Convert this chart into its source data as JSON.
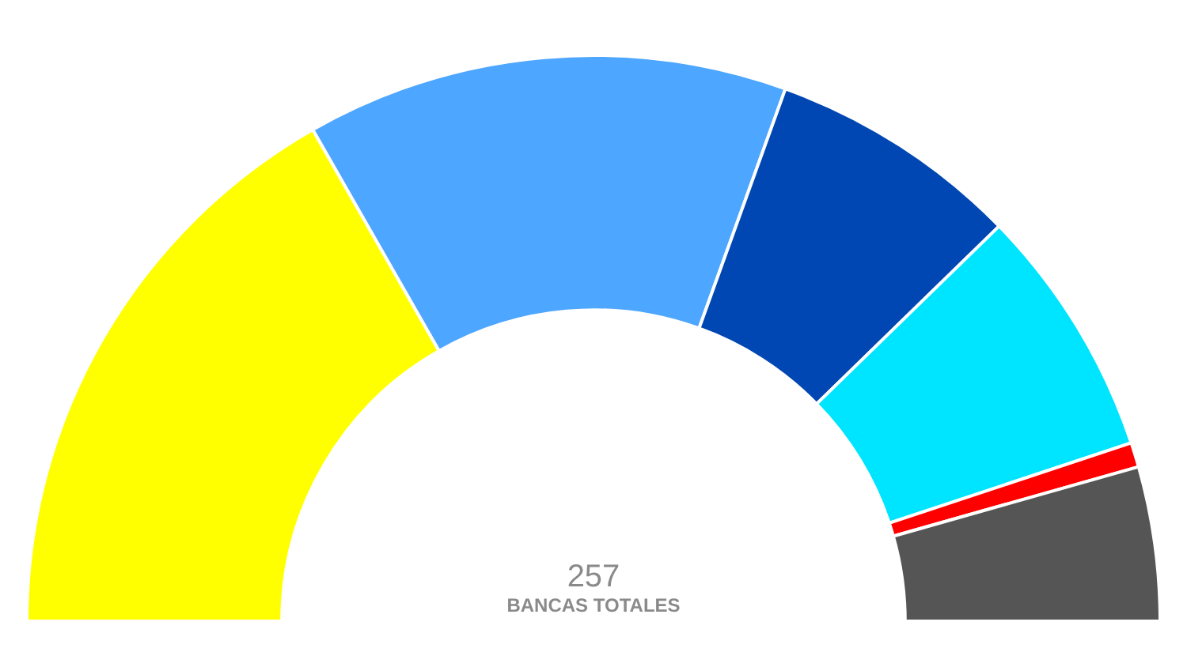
{
  "chart_data": {
    "type": "donut",
    "categories": [
      null,
      null,
      null,
      null,
      null,
      null
    ],
    "values": [
      33.5,
      27.5,
      14.4,
      14.4,
      1.4,
      8.8
    ],
    "colors": [
      "#ffff00",
      "#4da6ff",
      "#0047b3",
      "#00e5ff",
      "#ff0000",
      "#555555"
    ],
    "annotations": [
      "257",
      "BANCAS TOTALES"
    ],
    "legend": false
  }
}
